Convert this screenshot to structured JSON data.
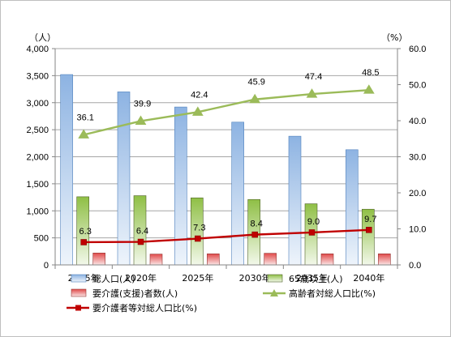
{
  "chart_data": {
    "type": "bar",
    "categories": [
      "2015年",
      "2020年",
      "2025年",
      "2030年",
      "2035年",
      "2040年"
    ],
    "left_unit": "（人）",
    "right_unit": "（%）",
    "ylim_left": [
      0,
      4000
    ],
    "ylim_right": [
      0,
      60
    ],
    "left_ticks": [
      "0",
      "500",
      "1,000",
      "1,500",
      "2,000",
      "2,500",
      "3,000",
      "3,500",
      "4,000"
    ],
    "right_ticks": [
      "0.0",
      "10.0",
      "20.0",
      "30.0",
      "40.0",
      "50.0",
      "60.0"
    ],
    "bar_series": [
      {
        "name": "総人口(人)",
        "color": "#8db3e2",
        "values": [
          3520,
          3200,
          2920,
          2640,
          2380,
          2130
        ]
      },
      {
        "name": "65歳以上(人)",
        "color": "#9bbb59",
        "values": [
          1260,
          1280,
          1240,
          1210,
          1130,
          1030
        ]
      },
      {
        "name": "要介護(支援)者数(人)",
        "color": "#e46c6c",
        "values": [
          220,
          200,
          205,
          215,
          205,
          205
        ]
      }
    ],
    "line_series": [
      {
        "name": "高齢者対総人口比(%)",
        "color": "#9bbb59",
        "marker": "triangle",
        "values": [
          36.1,
          39.9,
          42.4,
          45.9,
          47.4,
          48.5
        ],
        "labels": [
          "36.1",
          "39.9",
          "42.4",
          "45.9",
          "47.4",
          "48.5"
        ]
      },
      {
        "name": "要介護者等対総人口比(%)",
        "color": "#c00000",
        "marker": "square",
        "values": [
          6.3,
          6.4,
          7.3,
          8.4,
          9.0,
          9.7
        ],
        "labels": [
          "6.3",
          "6.4",
          "7.3",
          "8.4",
          "9.0",
          "9.7"
        ]
      }
    ],
    "grid": true,
    "legend": "bottom"
  }
}
